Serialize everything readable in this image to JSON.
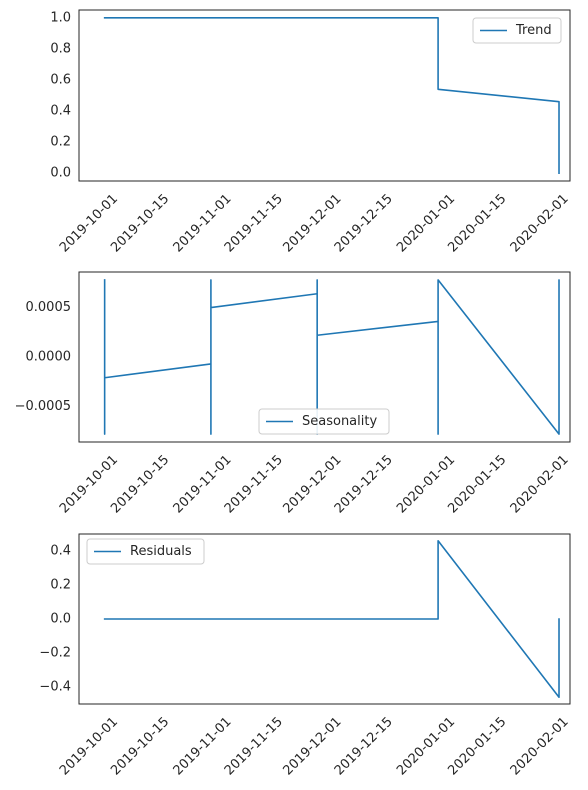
{
  "colors": {
    "line": "#1f77b4",
    "axes": "#262626",
    "background": "#ffffff",
    "legend_border": "#cccccc"
  },
  "chart_data": [
    {
      "type": "line",
      "xlim": [
        "2019-09-22",
        "2020-02-03"
      ],
      "ylim": [
        -0.05,
        1.05
      ],
      "grid": false,
      "legend_position": "upper right",
      "xticks": [
        "2019-10-01",
        "2019-10-15",
        "2019-11-01",
        "2019-11-15",
        "2019-12-01",
        "2019-12-15",
        "2020-01-01",
        "2020-01-15",
        "2020-02-01"
      ],
      "yticks": [
        "0.0",
        "0.2",
        "0.4",
        "0.6",
        "0.8",
        "1.0"
      ],
      "ytick_values": [
        0,
        0.2,
        0.4,
        0.6,
        0.8,
        1.0
      ],
      "series": [
        {
          "name": "Trend",
          "x": [
            "2019-09-29",
            "2019-12-29",
            "2019-12-29",
            "2020-01-31",
            "2020-01-31"
          ],
          "y": [
            1.0,
            1.0,
            0.54,
            0.46,
            0.0
          ]
        }
      ]
    },
    {
      "type": "line",
      "xlim": [
        "2019-09-22",
        "2020-02-03"
      ],
      "ylim": [
        -0.00086,
        0.00086
      ],
      "grid": false,
      "legend_position": "lower center",
      "xticks": [
        "2019-10-01",
        "2019-10-15",
        "2019-11-01",
        "2019-11-15",
        "2019-12-01",
        "2019-12-15",
        "2020-01-01",
        "2020-01-15",
        "2020-02-01"
      ],
      "yticks": [
        "−0.0005",
        "0.0000",
        "0.0005"
      ],
      "ytick_values": [
        -0.0005,
        0.0,
        0.0005
      ],
      "series": [
        {
          "name": "Seasonality",
          "x": [
            "2019-09-29",
            "2019-09-29",
            "2019-09-29",
            "2019-10-28",
            "2019-10-28",
            "2019-10-28",
            "2019-10-28",
            "2019-11-26",
            "2019-11-26",
            "2019-11-26",
            "2019-11-26",
            "2019-12-29",
            "2019-12-29",
            "2019-12-29",
            "2019-12-29",
            "2020-01-31",
            "2020-01-31",
            "2020-01-31"
          ],
          "y": [
            0.00078,
            -0.00078,
            -0.00021,
            -7e-05,
            0.00078,
            -0.00078,
            0.0005,
            0.00064,
            0.00078,
            -0.00078,
            0.00022,
            0.00036,
            -0.00078,
            0.00078,
            0.00078,
            -0.00078,
            0.00078,
            -0.0005
          ]
        }
      ]
    },
    {
      "type": "line",
      "xlim": [
        "2019-09-22",
        "2020-02-03"
      ],
      "ylim": [
        -0.5,
        0.5
      ],
      "grid": false,
      "legend_position": "upper left",
      "xticks": [
        "2019-10-01",
        "2019-10-15",
        "2019-11-01",
        "2019-11-15",
        "2019-12-01",
        "2019-12-15",
        "2020-01-01",
        "2020-01-15",
        "2020-02-01"
      ],
      "yticks": [
        "−0.4",
        "−0.2",
        "0.0",
        "0.2",
        "0.4"
      ],
      "ytick_values": [
        -0.4,
        -0.2,
        0.0,
        0.2,
        0.4
      ],
      "series": [
        {
          "name": "Residuals",
          "x": [
            "2019-09-29",
            "2019-12-29",
            "2019-12-29",
            "2020-01-31",
            "2020-01-31"
          ],
          "y": [
            0.0,
            0.0,
            0.46,
            -0.46,
            0.0
          ]
        }
      ]
    }
  ]
}
